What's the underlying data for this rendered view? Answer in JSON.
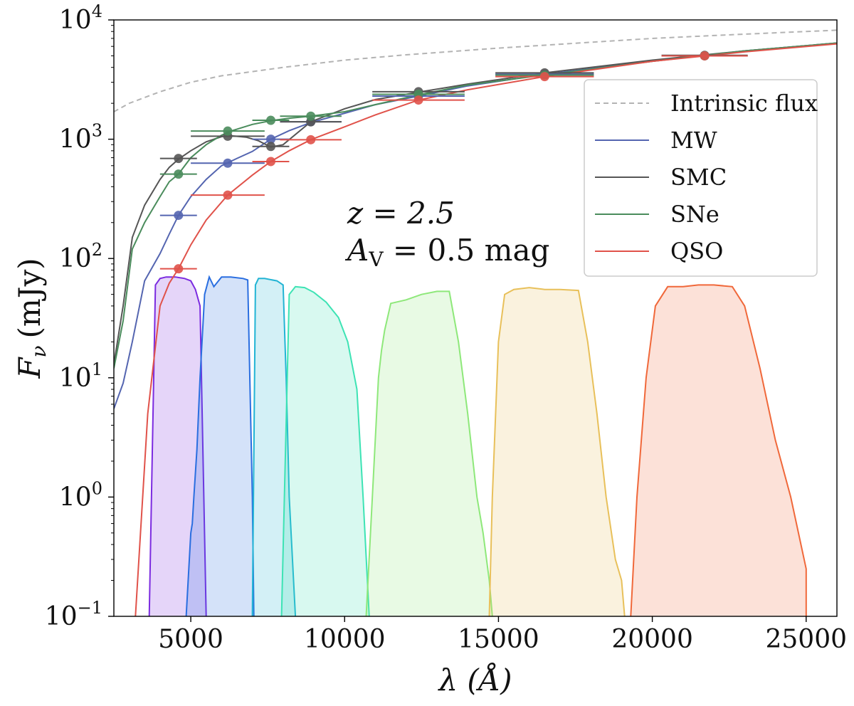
{
  "chart_data": {
    "type": "line",
    "xlabel": "λ (Å)",
    "ylabel": "F_ν (mJy)",
    "ylabel_main": "F",
    "ylabel_sub": "ν",
    "ylabel_unit": "(mJy)",
    "xlim": [
      2500,
      26000
    ],
    "ylim": [
      0.1,
      10000
    ],
    "yscale": "log",
    "x_ticks": [
      5000,
      10000,
      15000,
      20000,
      25000
    ],
    "x_tick_labels": [
      "5000",
      "10000",
      "15000",
      "20000",
      "25000"
    ],
    "y_ticks": [
      0.1,
      1,
      10,
      100,
      1000,
      10000
    ],
    "y_tick_labels": [
      {
        "base": "10",
        "exp": "−1"
      },
      {
        "base": "10",
        "exp": "0"
      },
      {
        "base": "10",
        "exp": "1"
      },
      {
        "base": "10",
        "exp": "2"
      },
      {
        "base": "10",
        "exp": "3"
      },
      {
        "base": "10",
        "exp": "4"
      }
    ],
    "grid": false,
    "legend_position": "upper-right",
    "annotation": {
      "line1": "z = 2.5",
      "line2_main": "A",
      "line2_sub": "V",
      "line2_rest": " = 0.5 mag"
    },
    "series": [
      {
        "name": "Intrinsic flux",
        "color": "#b3b3b3",
        "dash": true,
        "x": [
          2500,
          3000,
          4000,
          5000,
          6000,
          8000,
          10000,
          12000,
          15000,
          18000,
          20000,
          22000,
          24000,
          26000
        ],
        "y": [
          1700,
          2000,
          2500,
          3000,
          3400,
          4000,
          4600,
          5100,
          5800,
          6500,
          7000,
          7400,
          7800,
          8200
        ]
      },
      {
        "name": "MW",
        "color": "#5465b0",
        "x": [
          2500,
          2800,
          3100,
          3500,
          4000,
          4300,
          4600,
          5000,
          5500,
          6000,
          6500,
          7000,
          7600,
          8200,
          8900,
          10000,
          11000,
          12400,
          14000,
          16500,
          20000,
          23000,
          26000
        ],
        "y": [
          5.5,
          9,
          20,
          65,
          110,
          160,
          230,
          330,
          460,
          600,
          690,
          790,
          1000,
          1180,
          1380,
          1650,
          1950,
          2300,
          2800,
          3500,
          4500,
          5500,
          6400
        ]
      },
      {
        "name": "SMC",
        "color": "#555555",
        "x": [
          2500,
          2800,
          3100,
          3500,
          4000,
          4300,
          4600,
          5000,
          5500,
          6000,
          6300,
          6800,
          7200,
          7600,
          8000,
          8900,
          10000,
          11000,
          12400,
          14000,
          16500,
          20000,
          23000,
          26000
        ],
        "y": [
          13,
          40,
          150,
          280,
          460,
          580,
          680,
          800,
          950,
          1050,
          1070,
          1040,
          970,
          860,
          900,
          1400,
          1800,
          2150,
          2480,
          2900,
          3600,
          4600,
          5500,
          6400
        ]
      },
      {
        "name": "SNe",
        "color": "#4a8c5c",
        "x": [
          2500,
          2800,
          3100,
          3500,
          4000,
          4300,
          4600,
          5000,
          5500,
          6000,
          6300,
          7000,
          7600,
          8200,
          8900,
          10000,
          11000,
          12400,
          14000,
          16500,
          20000,
          23000,
          26000
        ],
        "y": [
          12,
          30,
          120,
          200,
          330,
          440,
          510,
          700,
          900,
          1080,
          1170,
          1330,
          1430,
          1500,
          1560,
          1700,
          1950,
          2350,
          2850,
          3450,
          4500,
          5500,
          6400
        ]
      },
      {
        "name": "QSO",
        "color": "#e0524a",
        "x": [
          3200,
          3600,
          4000,
          4300,
          4600,
          5000,
          5500,
          6200,
          7000,
          7600,
          8200,
          8900,
          10000,
          11000,
          12400,
          14000,
          16500,
          20000,
          23000,
          26000
        ],
        "y": [
          0.1,
          5,
          40,
          62,
          82,
          130,
          210,
          340,
          500,
          650,
          800,
          990,
          1270,
          1600,
          2130,
          2600,
          3350,
          4500,
          5400,
          6300
        ]
      }
    ],
    "photometry": [
      {
        "series": "MW",
        "color": "#5465b0",
        "points": [
          {
            "x": 4600,
            "y": 230,
            "xerr": 600
          },
          {
            "x": 6200,
            "y": 630,
            "xerr": 1200
          },
          {
            "x": 7600,
            "y": 1000,
            "xerr": 600
          },
          {
            "x": 8900,
            "y": 1400,
            "xerr": 1000
          },
          {
            "x": 12400,
            "y": 2300,
            "xerr": 1500
          },
          {
            "x": 16500,
            "y": 3500,
            "xerr": 1600
          },
          {
            "x": 21700,
            "y": 5000,
            "xerr": 1400
          }
        ]
      },
      {
        "series": "SMC",
        "color": "#555555",
        "points": [
          {
            "x": 4600,
            "y": 690,
            "xerr": 600
          },
          {
            "x": 6200,
            "y": 1060,
            "xerr": 1200
          },
          {
            "x": 7600,
            "y": 870,
            "xerr": 600
          },
          {
            "x": 8900,
            "y": 1400,
            "xerr": 1000
          },
          {
            "x": 12400,
            "y": 2500,
            "xerr": 1500
          },
          {
            "x": 16500,
            "y": 3600,
            "xerr": 1600
          },
          {
            "x": 21700,
            "y": 5050,
            "xerr": 1400
          }
        ]
      },
      {
        "series": "SNe",
        "color": "#4a8c5c",
        "points": [
          {
            "x": 4600,
            "y": 510,
            "xerr": 600
          },
          {
            "x": 6200,
            "y": 1170,
            "xerr": 1200
          },
          {
            "x": 7600,
            "y": 1440,
            "xerr": 600
          },
          {
            "x": 8900,
            "y": 1560,
            "xerr": 1000
          },
          {
            "x": 12400,
            "y": 2380,
            "xerr": 1500
          },
          {
            "x": 16500,
            "y": 3450,
            "xerr": 1600
          },
          {
            "x": 21700,
            "y": 5000,
            "xerr": 1400
          }
        ]
      },
      {
        "series": "QSO",
        "color": "#e0524a",
        "points": [
          {
            "x": 4600,
            "y": 82,
            "xerr": 600
          },
          {
            "x": 6200,
            "y": 340,
            "xerr": 1200
          },
          {
            "x": 7600,
            "y": 650,
            "xerr": 600
          },
          {
            "x": 8900,
            "y": 990,
            "xerr": 1000
          },
          {
            "x": 12400,
            "y": 2130,
            "xerr": 1500
          },
          {
            "x": 16500,
            "y": 3350,
            "xerr": 1600
          },
          {
            "x": 21700,
            "y": 5000,
            "xerr": 1400
          }
        ]
      }
    ],
    "filters": [
      {
        "color": "#7b2be0",
        "x": [
          3650,
          3850,
          4000,
          4200,
          4500,
          4800,
          5000,
          5150,
          5300,
          5500
        ],
        "y": [
          0.1,
          60,
          68,
          70,
          70,
          68,
          65,
          55,
          40,
          0.1
        ]
      },
      {
        "color": "#2a6ee0",
        "x": [
          4850,
          5000,
          5050,
          5100,
          5200,
          5300,
          5450,
          5600,
          5750,
          6000,
          6300,
          6700,
          6850,
          7000,
          7050
        ],
        "y": [
          0.1,
          0.5,
          0.6,
          1,
          2.5,
          10,
          50,
          70,
          58,
          70,
          70,
          68,
          66,
          1,
          0.1
        ]
      },
      {
        "color": "#22b4d4",
        "x": [
          7000,
          7100,
          7200,
          7400,
          7800,
          8000,
          8100,
          8200,
          8400
        ],
        "y": [
          0.1,
          60,
          68,
          68,
          65,
          60,
          10,
          1,
          0.1
        ]
      },
      {
        "color": "#3de3b4",
        "x": [
          7950,
          8200,
          8400,
          8700,
          9000,
          9400,
          9800,
          10100,
          10400,
          10600,
          10800
        ],
        "y": [
          0.1,
          50,
          58,
          57,
          52,
          43,
          32,
          20,
          8,
          1,
          0.1
        ]
      },
      {
        "color": "#8ee87a",
        "x": [
          10700,
          10900,
          11100,
          11200,
          11300,
          11500,
          12000,
          12500,
          13000,
          13400,
          13700,
          14000,
          14300,
          14500,
          14700,
          14800
        ],
        "y": [
          0.1,
          1,
          10,
          17,
          25,
          42,
          45,
          50,
          53,
          53,
          20,
          5,
          1,
          0.5,
          0.2,
          0.1
        ]
      },
      {
        "color": "#e8c05a",
        "x": [
          14700,
          14800,
          15000,
          15200,
          15500,
          16000,
          16500,
          17000,
          17600,
          17900,
          18200,
          18500,
          18800,
          19000,
          19100
        ],
        "y": [
          0.1,
          1,
          20,
          50,
          55,
          57,
          55,
          55,
          54,
          20,
          5,
          1,
          0.3,
          0.2,
          0.1
        ]
      },
      {
        "color": "#f0683a",
        "x": [
          19300,
          19500,
          19800,
          20100,
          20500,
          21000,
          21500,
          22000,
          22600,
          23000,
          23500,
          24000,
          24500,
          25000,
          25000
        ],
        "y": [
          0.1,
          1,
          10,
          40,
          58,
          58,
          60,
          60,
          58,
          40,
          12,
          3,
          1,
          0.25,
          0.1
        ]
      }
    ]
  }
}
